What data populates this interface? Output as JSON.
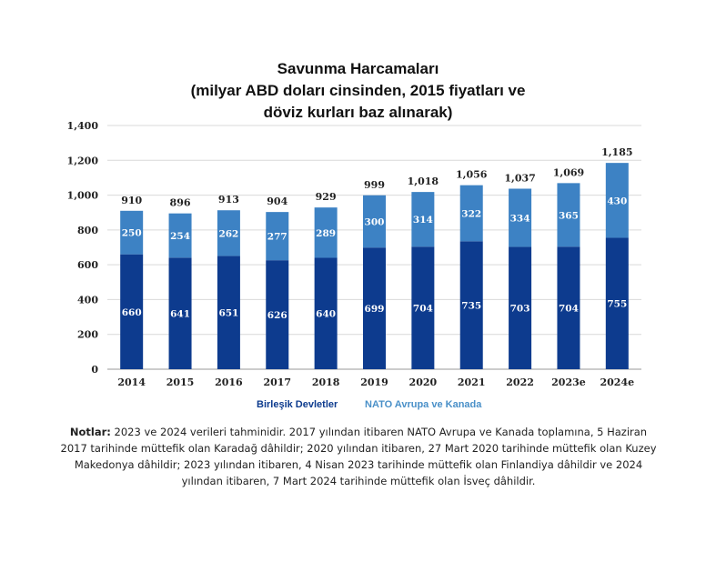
{
  "chart_data": {
    "type": "bar",
    "stacked": true,
    "title_lines": [
      "Savunma Harcamaları",
      "(milyar ABD doları cinsinden, 2015 fiyatları ve",
      "döviz kurları baz alınarak)"
    ],
    "categories": [
      "2014",
      "2015",
      "2016",
      "2017",
      "2018",
      "2019",
      "2020",
      "2021",
      "2022",
      "2023e",
      "2024e"
    ],
    "series": [
      {
        "name": "Birleşik Devletler",
        "values": [
          660,
          641,
          651,
          626,
          640,
          699,
          704,
          735,
          703,
          704,
          755
        ],
        "color": "#0d3b8e"
      },
      {
        "name": "NATO Avrupa ve Kanada",
        "values": [
          250,
          254,
          262,
          277,
          289,
          300,
          314,
          322,
          334,
          365,
          430
        ],
        "color": "#3d82c4"
      }
    ],
    "totals": [
      "910",
      "896",
      "913",
      "904",
      "929",
      "999",
      "1,018",
      "1,056",
      "1,037",
      "1,069",
      "1,185"
    ],
    "ylim": [
      0,
      1400
    ],
    "yticks": [
      "0",
      "200",
      "400",
      "600",
      "800",
      "1,000",
      "1,200",
      "1,400"
    ],
    "grid": true,
    "legend_position": "bottom",
    "legend_colors": [
      "#0d3b8e",
      "#4a90c8"
    ]
  },
  "notes": {
    "label": "Notlar:",
    "text": "2023 ve 2024 verileri tahminidir. 2017 yılından itibaren NATO Avrupa ve Kanada toplamına, 5 Haziran 2017 tarihinde müttefik olan Karadağ dâhildir; 2020 yılından itibaren, 27 Mart 2020 tarihinde müttefik olan Kuzey Makedonya dâhildir; 2023 yılından itibaren, 4 Nisan 2023 tarihinde müttefik olan Finlandiya dâhildir ve 2024 yılından itibaren, 7 Mart 2024 tarihinde müttefik olan İsveç dâhildir."
  }
}
